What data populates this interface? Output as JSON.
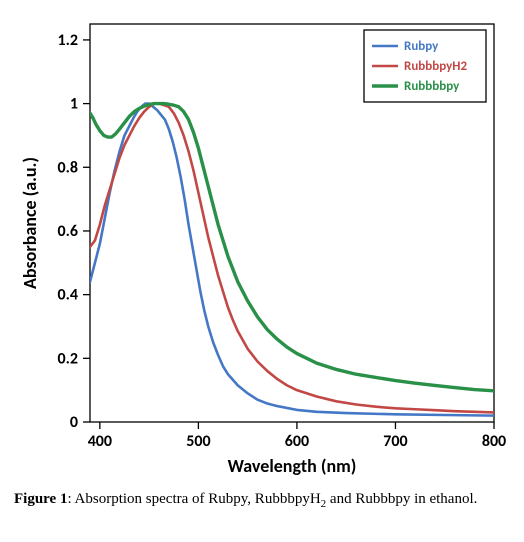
{
  "chart": {
    "type": "line",
    "background_color": "#ffffff",
    "plot_border_color": "#000000",
    "plot_border_width": 1.3,
    "xlabel": "Wavelength (nm)",
    "ylabel": "Absorbance (a.u.)",
    "label_fontsize": 18,
    "tick_fontsize": 16,
    "tick_font_family": "Calibri",
    "xlim": [
      390,
      800
    ],
    "ylim": [
      0,
      1.25
    ],
    "xticks": [
      400,
      500,
      600,
      700,
      800
    ],
    "yticks": [
      0,
      0.2,
      0.4,
      0.6,
      0.8,
      1,
      1.2
    ],
    "legend": {
      "position": "top-right",
      "border_color": "#000000",
      "border_width": 1.3,
      "bg": "#ffffff",
      "items": [
        {
          "label": "Rubpy",
          "color": "#4478c6"
        },
        {
          "label": "RubbbpyH2",
          "color": "#c24846"
        },
        {
          "label": "Rubbbbpy",
          "color": "#299048"
        }
      ]
    },
    "series": [
      {
        "name": "Rubpy",
        "color": "#4478c6",
        "line_width": 2.6,
        "data": [
          [
            390,
            0.44
          ],
          [
            395,
            0.5
          ],
          [
            400,
            0.56
          ],
          [
            405,
            0.64
          ],
          [
            410,
            0.72
          ],
          [
            415,
            0.79
          ],
          [
            420,
            0.85
          ],
          [
            425,
            0.9
          ],
          [
            430,
            0.93
          ],
          [
            435,
            0.96
          ],
          [
            438,
            0.975
          ],
          [
            442,
            0.99
          ],
          [
            446,
            1.0
          ],
          [
            450,
            1.0
          ],
          [
            454,
            0.99
          ],
          [
            458,
            0.98
          ],
          [
            462,
            0.965
          ],
          [
            466,
            0.95
          ],
          [
            470,
            0.92
          ],
          [
            474,
            0.88
          ],
          [
            478,
            0.83
          ],
          [
            482,
            0.77
          ],
          [
            486,
            0.7
          ],
          [
            490,
            0.62
          ],
          [
            494,
            0.55
          ],
          [
            498,
            0.48
          ],
          [
            502,
            0.41
          ],
          [
            506,
            0.35
          ],
          [
            510,
            0.3
          ],
          [
            515,
            0.25
          ],
          [
            520,
            0.21
          ],
          [
            525,
            0.175
          ],
          [
            530,
            0.15
          ],
          [
            540,
            0.115
          ],
          [
            550,
            0.09
          ],
          [
            560,
            0.07
          ],
          [
            570,
            0.058
          ],
          [
            580,
            0.05
          ],
          [
            600,
            0.038
          ],
          [
            620,
            0.032
          ],
          [
            650,
            0.028
          ],
          [
            700,
            0.024
          ],
          [
            750,
            0.022
          ],
          [
            800,
            0.02
          ]
        ]
      },
      {
        "name": "RubbbpyH2",
        "color": "#c24846",
        "line_width": 2.6,
        "data": [
          [
            390,
            0.55
          ],
          [
            395,
            0.57
          ],
          [
            400,
            0.62
          ],
          [
            405,
            0.68
          ],
          [
            410,
            0.73
          ],
          [
            415,
            0.78
          ],
          [
            420,
            0.83
          ],
          [
            425,
            0.87
          ],
          [
            430,
            0.9
          ],
          [
            435,
            0.93
          ],
          [
            440,
            0.955
          ],
          [
            445,
            0.975
          ],
          [
            450,
            0.99
          ],
          [
            455,
            1.0
          ],
          [
            460,
            1.0
          ],
          [
            465,
            0.995
          ],
          [
            470,
            0.99
          ],
          [
            475,
            0.97
          ],
          [
            480,
            0.94
          ],
          [
            485,
            0.9
          ],
          [
            490,
            0.85
          ],
          [
            495,
            0.79
          ],
          [
            500,
            0.72
          ],
          [
            505,
            0.65
          ],
          [
            510,
            0.58
          ],
          [
            515,
            0.52
          ],
          [
            520,
            0.46
          ],
          [
            525,
            0.41
          ],
          [
            530,
            0.36
          ],
          [
            535,
            0.32
          ],
          [
            540,
            0.285
          ],
          [
            550,
            0.23
          ],
          [
            560,
            0.19
          ],
          [
            570,
            0.16
          ],
          [
            580,
            0.135
          ],
          [
            590,
            0.115
          ],
          [
            600,
            0.1
          ],
          [
            620,
            0.08
          ],
          [
            640,
            0.065
          ],
          [
            660,
            0.055
          ],
          [
            680,
            0.048
          ],
          [
            700,
            0.043
          ],
          [
            720,
            0.04
          ],
          [
            740,
            0.037
          ],
          [
            760,
            0.034
          ],
          [
            780,
            0.032
          ],
          [
            800,
            0.03
          ]
        ]
      },
      {
        "name": "Rubbbbpy",
        "color": "#299048",
        "line_width": 3.4,
        "data": [
          [
            390,
            0.97
          ],
          [
            393,
            0.955
          ],
          [
            396,
            0.935
          ],
          [
            400,
            0.915
          ],
          [
            404,
            0.9
          ],
          [
            408,
            0.895
          ],
          [
            412,
            0.895
          ],
          [
            416,
            0.905
          ],
          [
            420,
            0.92
          ],
          [
            425,
            0.94
          ],
          [
            430,
            0.96
          ],
          [
            435,
            0.975
          ],
          [
            440,
            0.985
          ],
          [
            445,
            0.992
          ],
          [
            450,
            0.997
          ],
          [
            455,
            1.0
          ],
          [
            460,
            1.0
          ],
          [
            465,
            1.0
          ],
          [
            470,
            0.998
          ],
          [
            475,
            0.995
          ],
          [
            480,
            0.99
          ],
          [
            485,
            0.975
          ],
          [
            490,
            0.95
          ],
          [
            495,
            0.91
          ],
          [
            500,
            0.86
          ],
          [
            505,
            0.8
          ],
          [
            510,
            0.74
          ],
          [
            515,
            0.68
          ],
          [
            520,
            0.62
          ],
          [
            525,
            0.57
          ],
          [
            530,
            0.52
          ],
          [
            535,
            0.48
          ],
          [
            540,
            0.44
          ],
          [
            545,
            0.41
          ],
          [
            550,
            0.38
          ],
          [
            560,
            0.33
          ],
          [
            570,
            0.29
          ],
          [
            580,
            0.26
          ],
          [
            590,
            0.235
          ],
          [
            600,
            0.215
          ],
          [
            610,
            0.2
          ],
          [
            620,
            0.185
          ],
          [
            640,
            0.165
          ],
          [
            660,
            0.15
          ],
          [
            680,
            0.14
          ],
          [
            700,
            0.13
          ],
          [
            720,
            0.122
          ],
          [
            740,
            0.115
          ],
          [
            760,
            0.108
          ],
          [
            780,
            0.102
          ],
          [
            800,
            0.098
          ]
        ]
      }
    ]
  },
  "caption": {
    "label_bold": "Figure 1",
    "text_before": ": Absorption spectra of Rubpy, RubbbpyH",
    "subscript": "2",
    "text_after": " and Rubbbpy in ethanol."
  }
}
